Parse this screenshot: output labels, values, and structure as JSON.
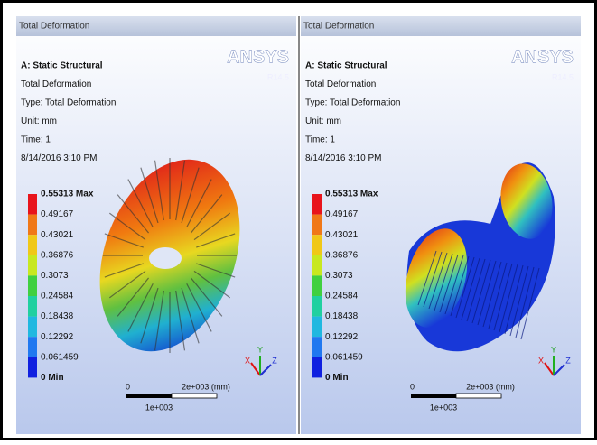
{
  "panels": [
    {
      "header": "Total Deformation",
      "info": [
        "A: Static Structural",
        "Total Deformation",
        "Type: Total Deformation",
        "Unit: mm",
        "Time: 1",
        "8/14/2016 3:10 PM"
      ],
      "logo": {
        "brand": "ANSYS",
        "version": "R14.5"
      },
      "legend": [
        "0.55313 Max",
        "0.49167",
        "0.43021",
        "0.36876",
        "0.3073",
        "0.24584",
        "0.18438",
        "0.12292",
        "0.061459",
        "0 Min"
      ],
      "scale": {
        "start": "0",
        "end": "2e+003 (mm)",
        "mid": "1e+003"
      },
      "triad": [
        "X",
        "Y",
        "Z"
      ]
    },
    {
      "header": "Total Deformation",
      "info": [
        "A: Static Structural",
        "Total Deformation",
        "Type: Total Deformation",
        "Unit: mm",
        "Time: 1",
        "8/14/2016 3:10 PM"
      ],
      "logo": {
        "brand": "ANSYS",
        "version": "R14.5"
      },
      "legend": [
        "0.55313 Max",
        "0.49167",
        "0.43021",
        "0.36876",
        "0.3073",
        "0.24584",
        "0.18438",
        "0.12292",
        "0.061459",
        "0 Min"
      ],
      "scale": {
        "start": "0",
        "end": "2e+003 (mm)",
        "mid": "1e+003"
      },
      "triad": [
        "X",
        "Y",
        "Z"
      ]
    }
  ]
}
